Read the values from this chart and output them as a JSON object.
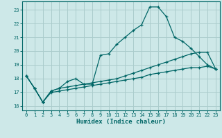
{
  "xlabel": "Humidex (Indice chaleur)",
  "background_color": "#cde8e8",
  "grid_color": "#aacccc",
  "line_color": "#006666",
  "xlim": [
    -0.5,
    23.5
  ],
  "ylim": [
    15.7,
    23.6
  ],
  "yticks": [
    16,
    17,
    18,
    19,
    20,
    21,
    22,
    23
  ],
  "xticks": [
    0,
    1,
    2,
    3,
    4,
    5,
    6,
    7,
    8,
    9,
    10,
    11,
    12,
    13,
    14,
    15,
    16,
    17,
    18,
    19,
    20,
    21,
    22,
    23
  ],
  "line1_x": [
    0,
    1,
    2,
    3,
    4,
    5,
    6,
    7,
    8,
    9,
    10,
    11,
    12,
    13,
    14,
    15,
    16,
    17,
    18,
    19,
    20,
    21,
    22,
    23
  ],
  "line1_y": [
    18.2,
    17.3,
    16.3,
    17.1,
    17.3,
    17.8,
    18.0,
    17.6,
    17.6,
    19.7,
    19.8,
    20.5,
    21.0,
    21.5,
    21.9,
    23.2,
    23.2,
    22.5,
    21.0,
    20.7,
    20.2,
    19.6,
    19.0,
    18.7
  ],
  "line2_x": [
    0,
    1,
    2,
    3,
    4,
    5,
    6,
    7,
    8,
    9,
    10,
    11,
    12,
    13,
    14,
    15,
    16,
    17,
    18,
    19,
    20,
    21,
    22,
    23
  ],
  "line2_y": [
    18.2,
    17.3,
    16.3,
    17.1,
    17.3,
    17.4,
    17.5,
    17.6,
    17.7,
    17.8,
    17.9,
    18.0,
    18.2,
    18.4,
    18.6,
    18.8,
    19.0,
    19.2,
    19.4,
    19.6,
    19.8,
    19.9,
    19.9,
    18.7
  ],
  "line3_x": [
    0,
    1,
    2,
    3,
    4,
    5,
    6,
    7,
    8,
    9,
    10,
    11,
    12,
    13,
    14,
    15,
    16,
    17,
    18,
    19,
    20,
    21,
    22,
    23
  ],
  "line3_y": [
    18.2,
    17.3,
    16.3,
    17.0,
    17.1,
    17.2,
    17.3,
    17.4,
    17.5,
    17.6,
    17.7,
    17.8,
    17.9,
    18.0,
    18.1,
    18.3,
    18.4,
    18.5,
    18.6,
    18.7,
    18.8,
    18.8,
    18.9,
    18.7
  ]
}
